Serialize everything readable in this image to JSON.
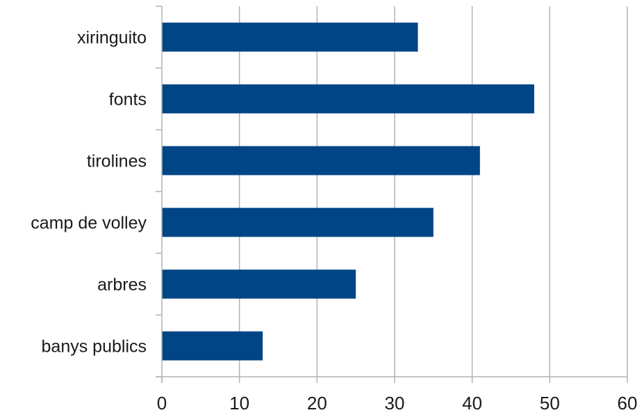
{
  "chart_data": {
    "type": "bar",
    "orientation": "horizontal",
    "categories": [
      "xiringuito",
      "fonts",
      "tirolines",
      "camp de volley",
      "arbres",
      "banys publics"
    ],
    "values": [
      33,
      48,
      41,
      35,
      25,
      13
    ],
    "x_ticks": [
      "0",
      "10",
      "20",
      "30",
      "40",
      "50",
      "60"
    ],
    "xlim": [
      0,
      60
    ],
    "grid": "vertical",
    "legend": "none",
    "title": "",
    "xlabel": "",
    "ylabel": ""
  },
  "colors": {
    "bar": "#004586",
    "grid": "#b3b3b3",
    "axis": "#b3b3b3"
  }
}
